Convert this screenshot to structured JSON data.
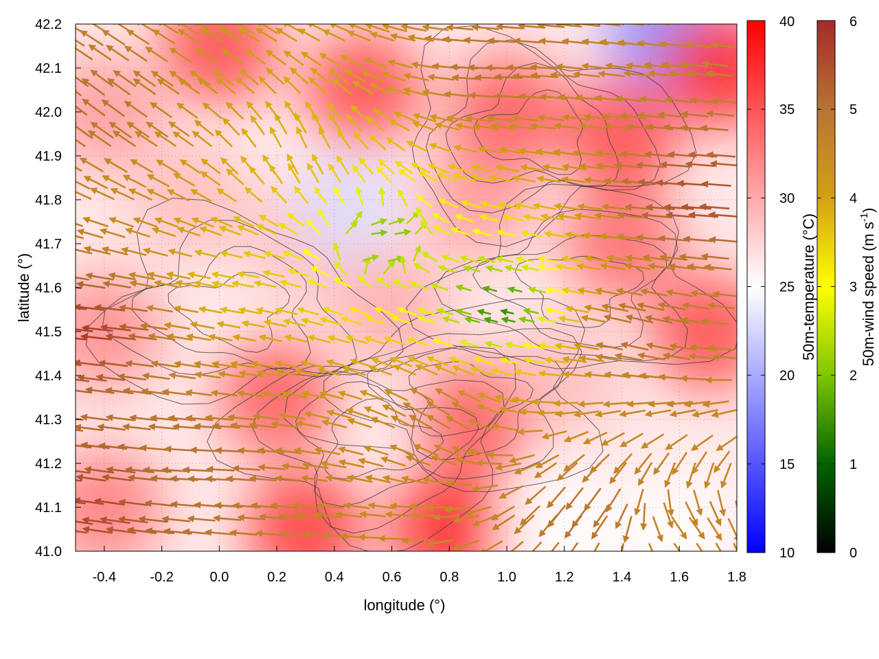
{
  "chart_data": {
    "type": "heatmap",
    "xlabel": "longitude (°)",
    "ylabel": "latitude (°)",
    "xlim": [
      -0.5,
      1.8
    ],
    "ylim": [
      41.0,
      42.2
    ],
    "x_ticks": [
      -0.4,
      -0.2,
      0.0,
      0.2,
      0.4,
      0.6,
      0.8,
      1.0,
      1.2,
      1.4,
      1.6,
      1.8
    ],
    "x_tick_labels": [
      "-0.4",
      "-0.2",
      "0.0",
      "0.2",
      "0.4",
      "0.6",
      "0.8",
      "1.0",
      "1.2",
      "1.4",
      "1.6",
      "1.8"
    ],
    "y_ticks": [
      41.0,
      41.1,
      41.2,
      41.3,
      41.4,
      41.5,
      41.6,
      41.7,
      41.8,
      41.9,
      42.0,
      42.1,
      42.2
    ],
    "y_tick_labels": [
      "41.0",
      "41.1",
      "41.2",
      "41.3",
      "41.4",
      "41.5",
      "41.6",
      "41.7",
      "41.8",
      "41.9",
      "42.0",
      "42.1",
      "42.2"
    ],
    "grid": true,
    "temperature_colorbar": {
      "label": "50m-temperature (°C)",
      "range": [
        10,
        40
      ],
      "ticks": [
        10,
        15,
        20,
        25,
        30,
        35,
        40
      ],
      "tick_labels": [
        "10",
        "15",
        "20",
        "25",
        "30",
        "35",
        "40"
      ],
      "colors": [
        "#0000ff",
        "#ffffff",
        "#ff0000"
      ]
    },
    "wind_colorbar": {
      "label": "50m-wind speed (m s",
      "label_sup": "-1",
      "label_end": ")",
      "range": [
        0,
        6
      ],
      "ticks": [
        0,
        1,
        2,
        3,
        4,
        5,
        6
      ],
      "tick_labels": [
        "0",
        "1",
        "2",
        "3",
        "4",
        "5",
        "6"
      ],
      "colors": [
        "#000000",
        "#006400",
        "#7fc600",
        "#ffff00",
        "#d4a017",
        "#b87333",
        "#a52a2a"
      ]
    },
    "temperature_field": [
      {
        "lon": -0.4,
        "lat": 41.1,
        "temp": 33
      },
      {
        "lon": -0.4,
        "lat": 41.5,
        "temp": 32
      },
      {
        "lon": -0.4,
        "lat": 42.0,
        "temp": 31
      },
      {
        "lon": -0.1,
        "lat": 41.8,
        "temp": 29
      },
      {
        "lon": 0.0,
        "lat": 42.15,
        "temp": 36
      },
      {
        "lon": 0.2,
        "lat": 41.35,
        "temp": 35
      },
      {
        "lon": 0.3,
        "lat": 41.05,
        "temp": 37
      },
      {
        "lon": 0.3,
        "lat": 41.7,
        "temp": 29
      },
      {
        "lon": 0.45,
        "lat": 41.78,
        "temp": 23
      },
      {
        "lon": 0.5,
        "lat": 42.05,
        "temp": 36
      },
      {
        "lon": 0.6,
        "lat": 41.55,
        "temp": 30
      },
      {
        "lon": 0.8,
        "lat": 41.05,
        "temp": 38
      },
      {
        "lon": 0.9,
        "lat": 41.3,
        "temp": 35
      },
      {
        "lon": 0.9,
        "lat": 41.8,
        "temp": 31
      },
      {
        "lon": 1.0,
        "lat": 42.0,
        "temp": 35
      },
      {
        "lon": 1.2,
        "lat": 41.05,
        "temp": 25
      },
      {
        "lon": 1.2,
        "lat": 41.4,
        "temp": 29
      },
      {
        "lon": 1.4,
        "lat": 41.7,
        "temp": 34
      },
      {
        "lon": 1.4,
        "lat": 41.95,
        "temp": 36
      },
      {
        "lon": 1.55,
        "lat": 42.18,
        "temp": 18
      },
      {
        "lon": 1.6,
        "lat": 41.05,
        "temp": 25
      },
      {
        "lon": 1.7,
        "lat": 41.5,
        "temp": 36
      },
      {
        "lon": 1.75,
        "lat": 42.1,
        "temp": 38
      }
    ],
    "wind_field": [
      {
        "lon": -0.4,
        "lat": 41.1,
        "u": -5.5,
        "v": 0.8,
        "speed": 5.6
      },
      {
        "lon": -0.4,
        "lat": 41.5,
        "u": -5.8,
        "v": 0.6,
        "speed": 5.8
      },
      {
        "lon": -0.4,
        "lat": 42.0,
        "u": -4.0,
        "v": 3.0,
        "speed": 5.0
      },
      {
        "lon": 0.0,
        "lat": 41.2,
        "u": -5.0,
        "v": 0.2,
        "speed": 5.0
      },
      {
        "lon": 0.1,
        "lat": 41.6,
        "u": -3.6,
        "v": 0.6,
        "speed": 3.6
      },
      {
        "lon": 0.3,
        "lat": 41.9,
        "u": -1.5,
        "v": 3.5,
        "speed": 3.8
      },
      {
        "lon": 0.55,
        "lat": 41.7,
        "u": 1.8,
        "v": 0.0,
        "speed": 1.8
      },
      {
        "lon": 0.8,
        "lat": 41.3,
        "u": -4.0,
        "v": 2.5,
        "speed": 4.7
      },
      {
        "lon": 1.0,
        "lat": 41.55,
        "u": -1.2,
        "v": 0.3,
        "speed": 1.2
      },
      {
        "lon": 1.0,
        "lat": 42.1,
        "u": -5.0,
        "v": 0.2,
        "speed": 5.0
      },
      {
        "lon": 1.3,
        "lat": 41.1,
        "u": -3.0,
        "v": -4.0,
        "speed": 5.0
      },
      {
        "lon": 1.5,
        "lat": 41.5,
        "u": -5.0,
        "v": 1.2,
        "speed": 5.1
      },
      {
        "lon": 1.6,
        "lat": 41.05,
        "u": 3.0,
        "v": -3.5,
        "speed": 4.6
      },
      {
        "lon": 1.7,
        "lat": 41.8,
        "u": -5.5,
        "v": 0.4,
        "speed": 5.5
      }
    ]
  }
}
